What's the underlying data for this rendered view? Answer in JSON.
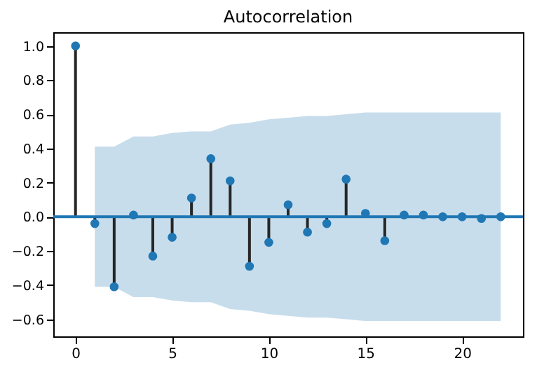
{
  "chart_data": {
    "type": "lollipop",
    "title": "Autocorrelation",
    "x": [
      0,
      1,
      2,
      3,
      4,
      5,
      6,
      7,
      8,
      9,
      10,
      11,
      12,
      13,
      14,
      15,
      16,
      17,
      18,
      19,
      20,
      21,
      22
    ],
    "series": [
      {
        "color": "#1f77b4",
        "values": [
          1.0,
          -0.04,
          -0.41,
          0.01,
          -0.23,
          -0.12,
          0.11,
          0.34,
          0.21,
          -0.29,
          -0.15,
          0.07,
          -0.09,
          -0.04,
          0.22,
          0.02,
          -0.14,
          0.01,
          0.01,
          0.0,
          0.0,
          -0.01,
          0.0
        ],
        "lower": [
          null,
          -0.41,
          -0.41,
          -0.47,
          -0.47,
          -0.49,
          -0.5,
          -0.5,
          -0.54,
          -0.55,
          -0.57,
          -0.58,
          -0.59,
          -0.59,
          -0.6,
          -0.61,
          -0.61,
          -0.61,
          -0.61,
          -0.61,
          -0.61,
          -0.61,
          -0.61
        ],
        "upper": [
          null,
          0.41,
          0.41,
          0.47,
          0.47,
          0.49,
          0.5,
          0.5,
          0.54,
          0.55,
          0.57,
          0.58,
          0.59,
          0.59,
          0.6,
          0.61,
          0.61,
          0.61,
          0.61,
          0.61,
          0.61,
          0.61,
          0.61
        ]
      }
    ],
    "xlim": [
      -1.15,
      23.15
    ],
    "xticks": [
      0,
      5,
      10,
      15,
      20
    ],
    "ylim": [
      -0.7,
      1.08
    ],
    "yticks": [
      {
        "value": -0.6,
        "label": "−0.6"
      },
      {
        "value": -0.4,
        "label": "−0.4"
      },
      {
        "value": -0.2,
        "label": "−0.2"
      },
      {
        "value": 0,
        "label": "0.0"
      },
      {
        "value": 0.2,
        "label": "0.2"
      },
      {
        "value": 0.4,
        "label": "0.4"
      },
      {
        "value": 0.6,
        "label": "0.6"
      },
      {
        "value": 0.8,
        "label": "0.8"
      },
      {
        "value": 1,
        "label": "1.0"
      }
    ],
    "ref_lines": [
      {
        "axis": "y",
        "value": 0,
        "color": "#1f77b4"
      }
    ],
    "marker": "circle",
    "grid": false
  }
}
